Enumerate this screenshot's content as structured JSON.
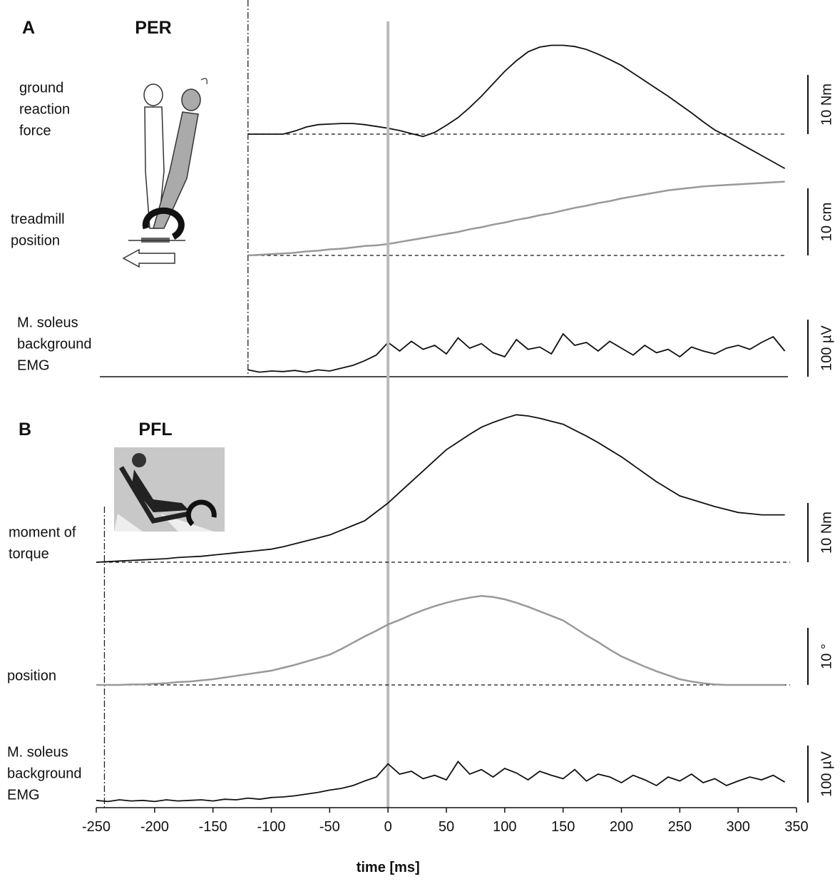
{
  "chart_data": [
    {
      "type": "line",
      "panel": "A",
      "title": "PER",
      "xlim": [
        -250,
        350
      ],
      "onset": -120,
      "x": [
        -120,
        -110,
        -100,
        -90,
        -80,
        -70,
        -60,
        -50,
        -40,
        -30,
        -20,
        -10,
        0,
        10,
        20,
        30,
        40,
        50,
        60,
        70,
        80,
        90,
        100,
        110,
        120,
        130,
        140,
        150,
        160,
        170,
        180,
        190,
        200,
        210,
        220,
        230,
        240,
        250,
        260,
        270,
        280,
        290,
        300,
        310,
        320,
        330,
        340
      ],
      "series": [
        {
          "name": [
            "ground",
            "reaction",
            "force"
          ],
          "color": "#111111",
          "scale": {
            "value": 10,
            "label": "10 Nm"
          },
          "values": [
            0,
            0,
            0,
            0,
            0.5,
            1.2,
            1.6,
            1.7,
            1.8,
            1.8,
            1.6,
            1.3,
            1.0,
            0.6,
            0.1,
            -0.4,
            0.3,
            1.5,
            2.8,
            4.5,
            6.4,
            8.5,
            10.6,
            12.4,
            13.9,
            14.7,
            15.0,
            15.0,
            14.8,
            14.3,
            13.5,
            12.6,
            11.6,
            10.3,
            9.0,
            7.7,
            6.4,
            5.0,
            3.6,
            2.1,
            0.7,
            -0.3,
            -1.4,
            -2.5,
            -3.6,
            -4.7,
            -5.8
          ]
        },
        {
          "name": [
            "treadmill",
            "position"
          ],
          "color": "#999999",
          "scale": {
            "value": 10,
            "label": "10 cm"
          },
          "values": [
            0,
            0.1,
            0.2,
            0.3,
            0.4,
            0.6,
            0.7,
            0.9,
            1.0,
            1.2,
            1.4,
            1.5,
            1.7,
            2.0,
            2.3,
            2.6,
            2.9,
            3.2,
            3.5,
            3.9,
            4.2,
            4.6,
            4.9,
            5.3,
            5.6,
            6.0,
            6.3,
            6.7,
            7.1,
            7.4,
            7.8,
            8.1,
            8.5,
            8.8,
            9.1,
            9.4,
            9.7,
            9.9,
            10.1,
            10.3,
            10.4,
            10.5,
            10.6,
            10.7,
            10.8,
            10.9,
            11.0
          ]
        },
        {
          "name": [
            "M. soleus",
            "background",
            "EMG"
          ],
          "color": "#111111",
          "scale": {
            "value": 100,
            "label": "100 µV"
          },
          "values": [
            12,
            8,
            10,
            9,
            11,
            8,
            12,
            10,
            15,
            20,
            28,
            38,
            60,
            45,
            62,
            48,
            55,
            40,
            68,
            50,
            58,
            42,
            35,
            65,
            48,
            52,
            40,
            75,
            55,
            60,
            45,
            62,
            50,
            38,
            55,
            42,
            48,
            35,
            52,
            45,
            40,
            50,
            55,
            48,
            60,
            70,
            45
          ]
        }
      ]
    },
    {
      "type": "line",
      "panel": "B",
      "title": "PFL",
      "xlim": [
        -250,
        350
      ],
      "onset": -243,
      "reference": 0,
      "xticks": [
        -250,
        -200,
        -150,
        -100,
        -50,
        0,
        50,
        100,
        150,
        200,
        250,
        300,
        350
      ],
      "xlabel": "time [ms]",
      "x": [
        -250,
        -240,
        -230,
        -220,
        -210,
        -200,
        -190,
        -180,
        -170,
        -160,
        -150,
        -140,
        -130,
        -120,
        -110,
        -100,
        -90,
        -80,
        -70,
        -60,
        -50,
        -40,
        -30,
        -20,
        -10,
        0,
        10,
        20,
        30,
        40,
        50,
        60,
        70,
        80,
        90,
        100,
        110,
        120,
        130,
        140,
        150,
        160,
        170,
        180,
        190,
        200,
        210,
        220,
        230,
        240,
        250,
        260,
        270,
        280,
        290,
        300,
        310,
        320,
        330,
        340
      ],
      "series": [
        {
          "name": [
            "moment of",
            "torque"
          ],
          "color": "#111111",
          "scale": {
            "value": 10,
            "label": "10 Nm"
          },
          "values": [
            0,
            0.1,
            0.2,
            0.3,
            0.4,
            0.5,
            0.6,
            0.8,
            0.9,
            1.0,
            1.2,
            1.4,
            1.6,
            1.8,
            2.0,
            2.2,
            2.6,
            3.1,
            3.6,
            4.1,
            4.6,
            5.4,
            6.2,
            7.0,
            8.5,
            10.0,
            11.8,
            13.6,
            15.4,
            17.2,
            19.0,
            20.3,
            21.6,
            22.8,
            23.6,
            24.3,
            24.9,
            24.7,
            24.3,
            23.8,
            23.3,
            22.3,
            21.3,
            20.2,
            19.0,
            17.8,
            16.4,
            15.0,
            13.6,
            12.4,
            11.2,
            10.6,
            10.0,
            9.4,
            8.9,
            8.4,
            8.2,
            8.0,
            8.0,
            8.0
          ]
        },
        {
          "name": [
            "position"
          ],
          "color": "#999999",
          "scale": {
            "value": 10,
            "label": "10 °"
          },
          "values": [
            0,
            0,
            0,
            0.1,
            0.1,
            0.2,
            0.3,
            0.5,
            0.6,
            0.8,
            1.0,
            1.3,
            1.6,
            1.9,
            2.2,
            2.5,
            3.0,
            3.5,
            4.1,
            4.7,
            5.3,
            6.3,
            7.4,
            8.5,
            9.5,
            10.6,
            11.4,
            12.3,
            13.1,
            13.8,
            14.4,
            14.9,
            15.3,
            15.6,
            15.4,
            15.0,
            14.4,
            13.7,
            12.9,
            12.1,
            11.3,
            10.0,
            8.7,
            7.5,
            6.2,
            5.0,
            4.1,
            3.2,
            2.4,
            1.7,
            1.0,
            0.6,
            0.3,
            0.1,
            0,
            0,
            0,
            0,
            0,
            0
          ]
        },
        {
          "name": [
            "M. soleus",
            "background",
            "EMG"
          ],
          "color": "#111111",
          "scale": {
            "value": 100,
            "label": "100 µV"
          },
          "values": [
            4,
            2,
            5,
            3,
            4,
            2,
            5,
            3,
            4,
            5,
            3,
            6,
            5,
            8,
            6,
            9,
            10,
            12,
            15,
            18,
            22,
            25,
            30,
            38,
            45,
            68,
            50,
            55,
            42,
            48,
            40,
            72,
            50,
            58,
            45,
            60,
            52,
            40,
            55,
            48,
            42,
            58,
            38,
            50,
            45,
            35,
            48,
            40,
            30,
            45,
            38,
            50,
            35,
            42,
            30,
            38,
            45,
            40,
            48,
            36
          ]
        }
      ]
    }
  ]
}
